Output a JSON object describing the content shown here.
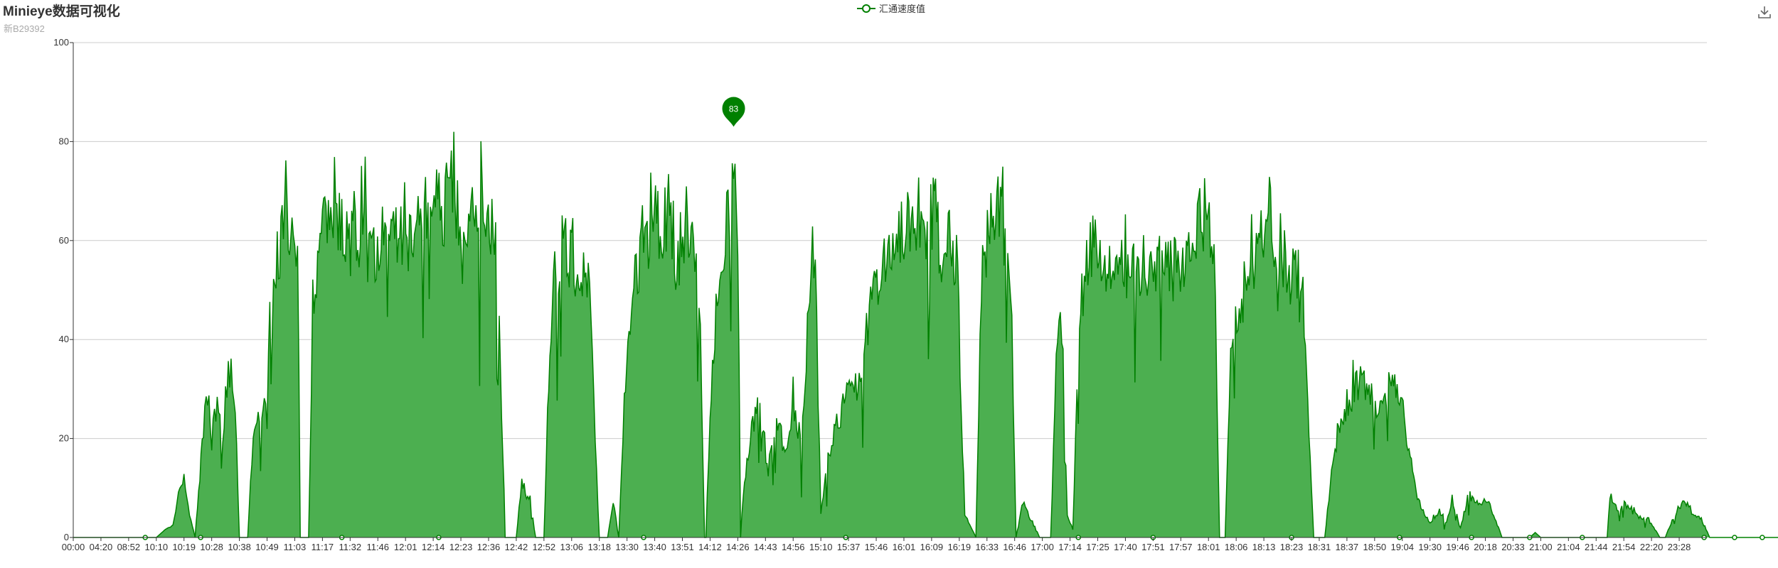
{
  "title": "Minieye数据可视化",
  "subtitle": "新B29392",
  "legend": {
    "label": "汇通速度值",
    "color": "#008000"
  },
  "toolbox": {
    "icon": "download-icon"
  },
  "chart_data": {
    "type": "area",
    "title": "Minieye数据可视化",
    "subtitle": "新B29392",
    "series": [
      {
        "name": "汇通速度值",
        "color": "#008000",
        "fill": "#4caf50"
      }
    ],
    "ylim": [
      0,
      100
    ],
    "y_ticks": [
      "0",
      "20",
      "40",
      "60",
      "80",
      "100"
    ],
    "x_ticks": [
      "00:00",
      "04:20",
      "08:52",
      "10:10",
      "10:19",
      "10:28",
      "10:38",
      "10:49",
      "11:03",
      "11:17",
      "11:32",
      "11:46",
      "12:01",
      "12:14",
      "12:23",
      "12:36",
      "12:42",
      "12:52",
      "13:06",
      "13:18",
      "13:30",
      "13:40",
      "13:51",
      "14:12",
      "14:26",
      "14:43",
      "14:56",
      "15:10",
      "15:37",
      "15:46",
      "16:01",
      "16:09",
      "16:19",
      "16:33",
      "16:46",
      "17:00",
      "17:14",
      "17:25",
      "17:40",
      "17:51",
      "17:57",
      "18:01",
      "18:06",
      "18:13",
      "18:23",
      "18:31",
      "18:37",
      "18:50",
      "19:04",
      "19:30",
      "19:46",
      "20:18",
      "20:33",
      "21:00",
      "21:04",
      "21:44",
      "21:54",
      "22:20",
      "23:28"
    ],
    "envelope": [
      [
        0,
        0
      ],
      [
        3,
        0
      ],
      [
        3.6,
        3
      ],
      [
        3.8,
        10
      ],
      [
        4.0,
        13
      ],
      [
        4.2,
        5
      ],
      [
        4.4,
        0
      ],
      [
        4.7,
        25
      ],
      [
        4.9,
        33
      ],
      [
        5.0,
        22
      ],
      [
        5.2,
        30
      ],
      [
        5.4,
        20
      ],
      [
        5.5,
        32
      ],
      [
        5.7,
        40
      ],
      [
        5.85,
        30
      ],
      [
        6.0,
        0
      ],
      [
        6.3,
        0
      ],
      [
        6.5,
        25
      ],
      [
        6.9,
        28
      ],
      [
        7.1,
        48
      ],
      [
        7.5,
        68
      ],
      [
        7.9,
        71
      ],
      [
        8.1,
        66
      ],
      [
        8.2,
        0
      ],
      [
        8.5,
        0
      ],
      [
        8.65,
        55
      ],
      [
        9.0,
        68
      ],
      [
        9.3,
        72
      ],
      [
        9.7,
        70
      ],
      [
        10.1,
        66
      ],
      [
        10.5,
        72
      ],
      [
        10.9,
        62
      ],
      [
        11.3,
        76
      ],
      [
        11.7,
        70
      ],
      [
        12.1,
        66
      ],
      [
        12.5,
        75
      ],
      [
        12.9,
        78
      ],
      [
        13.3,
        74
      ],
      [
        13.7,
        79
      ],
      [
        14.1,
        64
      ],
      [
        14.5,
        73
      ],
      [
        14.9,
        75
      ],
      [
        15.3,
        70
      ],
      [
        15.6,
        0
      ],
      [
        16.0,
        0
      ],
      [
        16.2,
        12
      ],
      [
        16.5,
        8
      ],
      [
        16.7,
        0
      ],
      [
        17.0,
        0
      ],
      [
        17.3,
        58
      ],
      [
        17.7,
        66
      ],
      [
        18.0,
        62
      ],
      [
        18.3,
        56
      ],
      [
        18.6,
        60
      ],
      [
        18.8,
        30
      ],
      [
        19.0,
        0
      ],
      [
        19.3,
        0
      ],
      [
        19.5,
        8
      ],
      [
        19.7,
        0
      ],
      [
        19.9,
        30
      ],
      [
        20.2,
        58
      ],
      [
        20.6,
        64
      ],
      [
        20.9,
        72
      ],
      [
        21.2,
        70
      ],
      [
        21.5,
        74
      ],
      [
        21.8,
        62
      ],
      [
        22.1,
        72
      ],
      [
        22.4,
        68
      ],
      [
        22.6,
        58
      ],
      [
        22.8,
        0
      ],
      [
        22.85,
        0
      ],
      [
        23.0,
        30
      ],
      [
        23.3,
        58
      ],
      [
        23.5,
        65
      ],
      [
        23.7,
        75
      ],
      [
        23.85,
        83
      ],
      [
        24.0,
        70
      ],
      [
        24.1,
        0
      ],
      [
        24.2,
        10
      ],
      [
        24.5,
        25
      ],
      [
        24.8,
        30
      ],
      [
        25.1,
        15
      ],
      [
        25.4,
        28
      ],
      [
        25.7,
        20
      ],
      [
        26.0,
        30
      ],
      [
        26.3,
        22
      ],
      [
        26.6,
        55
      ],
      [
        26.8,
        62
      ],
      [
        27.0,
        5
      ],
      [
        27.3,
        20
      ],
      [
        27.8,
        30
      ],
      [
        28.3,
        34
      ],
      [
        28.6,
        40
      ],
      [
        28.8,
        55
      ],
      [
        29.2,
        62
      ],
      [
        29.6,
        66
      ],
      [
        30.0,
        70
      ],
      [
        30.4,
        73
      ],
      [
        30.8,
        72
      ],
      [
        31.1,
        75
      ],
      [
        31.4,
        60
      ],
      [
        31.6,
        70
      ],
      [
        31.9,
        62
      ],
      [
        32.2,
        5
      ],
      [
        32.6,
        0
      ],
      [
        32.8,
        60
      ],
      [
        33.1,
        72
      ],
      [
        33.4,
        78
      ],
      [
        33.7,
        65
      ],
      [
        33.9,
        45
      ],
      [
        34.05,
        0
      ],
      [
        34.3,
        8
      ],
      [
        34.6,
        4
      ],
      [
        34.9,
        0
      ],
      [
        35.3,
        0
      ],
      [
        35.5,
        38
      ],
      [
        35.7,
        50
      ],
      [
        35.9,
        5
      ],
      [
        36.1,
        2
      ],
      [
        36.3,
        40
      ],
      [
        36.6,
        62
      ],
      [
        37.0,
        68
      ],
      [
        37.3,
        62
      ],
      [
        37.6,
        58
      ],
      [
        38.0,
        62
      ],
      [
        38.3,
        60
      ],
      [
        38.7,
        62
      ],
      [
        39.1,
        63
      ],
      [
        39.5,
        60
      ],
      [
        39.9,
        62
      ],
      [
        40.2,
        63
      ],
      [
        40.6,
        70
      ],
      [
        40.9,
        74
      ],
      [
        41.2,
        66
      ],
      [
        41.4,
        0
      ],
      [
        41.6,
        0
      ],
      [
        41.8,
        45
      ],
      [
        42.2,
        55
      ],
      [
        42.6,
        60
      ],
      [
        42.9,
        70
      ],
      [
        43.2,
        72
      ],
      [
        43.5,
        58
      ],
      [
        43.7,
        62
      ],
      [
        44.0,
        55
      ],
      [
        44.2,
        60
      ],
      [
        44.5,
        45
      ],
      [
        44.8,
        0
      ],
      [
        45.2,
        0
      ],
      [
        45.4,
        12
      ],
      [
        45.7,
        25
      ],
      [
        46.0,
        30
      ],
      [
        46.4,
        35
      ],
      [
        46.8,
        33
      ],
      [
        47.2,
        28
      ],
      [
        47.6,
        36
      ],
      [
        47.9,
        34
      ],
      [
        48.2,
        20
      ],
      [
        48.5,
        10
      ],
      [
        48.8,
        5
      ],
      [
        49.0,
        3
      ],
      [
        49.3,
        6
      ],
      [
        49.6,
        3
      ],
      [
        49.8,
        9
      ],
      [
        50.1,
        2
      ],
      [
        50.4,
        10
      ],
      [
        50.7,
        7
      ],
      [
        51.0,
        9
      ],
      [
        51.3,
        5
      ],
      [
        51.6,
        0
      ],
      [
        52.0,
        0
      ],
      [
        52.6,
        0
      ],
      [
        52.8,
        1
      ],
      [
        53.0,
        0
      ],
      [
        55.4,
        0
      ],
      [
        55.5,
        10
      ],
      [
        55.8,
        6
      ],
      [
        56.1,
        7
      ],
      [
        56.5,
        5
      ],
      [
        56.9,
        4
      ],
      [
        57.3,
        0
      ],
      [
        57.5,
        0
      ],
      [
        57.7,
        3
      ],
      [
        58.0,
        7
      ],
      [
        58.3,
        8
      ],
      [
        58.5,
        5
      ],
      [
        58.8,
        4
      ],
      [
        59.1,
        0
      ],
      [
        60,
        0
      ],
      [
        62,
        0
      ]
    ]
  }
}
